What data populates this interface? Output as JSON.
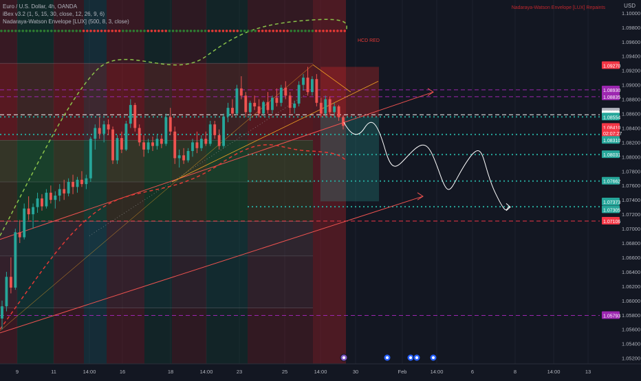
{
  "header": {
    "symbol": "Euro / U.S. Dollar, 4h, OANDA",
    "indicator1": "iBex v3.2 (1, 5, 15, 30, close, 12, 26, 9, 6)",
    "indicator2": "Nadaraya-Watson Envelope [LUX] (500, 8, 3, close)",
    "corner_label": "Nadaraya-Watson Envelope [LUX] Repaints",
    "currency": "USD"
  },
  "annotation": "HCD RED",
  "colors": {
    "background": "#131722",
    "up": "#26a69a",
    "down": "#ef5350",
    "grid": "#1e222d",
    "envelope_up": "#4caf50",
    "envelope_dn": "#e53935",
    "level_purple": "#9c27b0",
    "level_teal": "#26a69a",
    "level_red": "#f23645"
  },
  "chart_data": {
    "type": "candlestick",
    "x_ticks": [
      "9",
      "11",
      "14:00",
      "16",
      "18",
      "14:00",
      "23",
      "25",
      "14:00",
      "30",
      "Feb",
      "14:00",
      "6",
      "8",
      "14:00",
      "13"
    ],
    "y_ticks": [
      "1.10000",
      "1.09800",
      "1.09600",
      "1.09400",
      "1.09200",
      "1.09000",
      "1.08800",
      "1.08600",
      "1.08400",
      "1.08200",
      "1.08000",
      "1.07800",
      "1.07600",
      "1.07400",
      "1.07200",
      "1.07000",
      "1.06800",
      "1.06600",
      "1.06400",
      "1.06200",
      "1.06000",
      "1.05800",
      "1.05600",
      "1.05400",
      "1.05200"
    ],
    "ylim": [
      1.0512,
      1.1018
    ],
    "price_labels": [
      {
        "text": "1.09270",
        "price": 1.0927,
        "color": "#f23645",
        "text_color": "#ffffff"
      },
      {
        "text": "1.08930",
        "price": 1.0893,
        "color": "#9c27b0",
        "text_color": "#ffffff"
      },
      {
        "text": "1.08835",
        "price": 1.08835,
        "color": "#9c27b0",
        "text_color": "#ffffff"
      },
      {
        "text": "1.08623",
        "price": 1.08623,
        "color": "#b2b5be",
        "text_color": "#131722"
      },
      {
        "text": "1.08584",
        "price": 1.08584,
        "color": "#ffffff",
        "text_color": "#131722"
      },
      {
        "text": "1.08554",
        "price": 1.08554,
        "color": "#26a69a",
        "text_color": "#ffffff"
      },
      {
        "text": "1.08410",
        "price": 1.0841,
        "color": "#f23645",
        "text_color": "#ffffff"
      },
      {
        "text": "02:07:27",
        "price": 1.0833,
        "color": "#f23645",
        "text_color": "#ffffff"
      },
      {
        "text": "1.08310",
        "price": 1.0823,
        "color": "#26a69a",
        "text_color": "#ffffff"
      },
      {
        "text": "1.08031",
        "price": 1.08031,
        "color": "#26a69a",
        "text_color": "#ffffff"
      },
      {
        "text": "1.07662",
        "price": 1.07662,
        "color": "#26a69a",
        "text_color": "#ffffff"
      },
      {
        "text": "1.07373",
        "price": 1.07373,
        "color": "#26a69a",
        "text_color": "#ffffff"
      },
      {
        "text": "1.07305",
        "price": 1.07265,
        "color": "#26a69a",
        "text_color": "#ffffff"
      },
      {
        "text": "1.07106",
        "price": 1.07106,
        "color": "#f23645",
        "text_color": "#ffffff"
      },
      {
        "text": "1.05793",
        "price": 1.05793,
        "color": "#9c27b0",
        "text_color": "#ffffff"
      }
    ],
    "levels": [
      {
        "price": 1.0893,
        "color": "#9c27b0",
        "style": "dashed"
      },
      {
        "price": 1.08835,
        "color": "#9c27b0",
        "style": "dashed"
      },
      {
        "price": 1.08584,
        "color": "#ffffff",
        "style": "dashed"
      },
      {
        "price": 1.08554,
        "color": "#26a69a",
        "style": "dotted"
      },
      {
        "price": 1.0831,
        "color": "#26a69a",
        "style": "dotted"
      },
      {
        "price": 1.08031,
        "color": "#26a69a",
        "style": "dotted"
      },
      {
        "price": 1.07662,
        "color": "#26a69a",
        "style": "dotted"
      },
      {
        "price": 1.07305,
        "color": "#26a69a",
        "style": "dotted"
      },
      {
        "price": 1.07106,
        "color": "#f23645",
        "style": "dashed"
      },
      {
        "price": 1.05793,
        "color": "#9c27b0",
        "style": "dashed"
      }
    ],
    "candles": [
      [
        1.0575,
        1.06,
        1.056,
        1.0592
      ],
      [
        1.0592,
        1.064,
        1.0585,
        1.0633
      ],
      [
        1.0633,
        1.066,
        1.061,
        1.0618
      ],
      [
        1.0618,
        1.07,
        1.0615,
        1.0695
      ],
      [
        1.0695,
        1.0712,
        1.068,
        1.0688
      ],
      [
        1.0688,
        1.0735,
        1.0685,
        1.0728
      ],
      [
        1.0728,
        1.0745,
        1.0712,
        1.072
      ],
      [
        1.072,
        1.0735,
        1.07,
        1.073
      ],
      [
        1.073,
        1.075,
        1.0722,
        1.0742
      ],
      [
        1.0742,
        1.0748,
        1.0725,
        1.0731
      ],
      [
        1.0731,
        1.0755,
        1.0728,
        1.075
      ],
      [
        1.075,
        1.076,
        1.0735,
        1.074
      ],
      [
        1.074,
        1.0752,
        1.0728,
        1.0746
      ],
      [
        1.0746,
        1.0762,
        1.0738,
        1.0755
      ],
      [
        1.0755,
        1.0768,
        1.074,
        1.0749
      ],
      [
        1.0749,
        1.077,
        1.0745,
        1.0765
      ],
      [
        1.0765,
        1.0775,
        1.0748,
        1.0758
      ],
      [
        1.0758,
        1.0772,
        1.075,
        1.0768
      ],
      [
        1.0768,
        1.078,
        1.0758,
        1.0762
      ],
      [
        1.0762,
        1.0775,
        1.0755,
        1.077
      ],
      [
        1.077,
        1.0828,
        1.0765,
        1.0825
      ],
      [
        1.0825,
        1.0845,
        1.081,
        1.084
      ],
      [
        1.084,
        1.0855,
        1.0825,
        1.0832
      ],
      [
        1.0832,
        1.085,
        1.082,
        1.0845
      ],
      [
        1.0845,
        1.0852,
        1.083,
        1.0838
      ],
      [
        1.0838,
        1.0842,
        1.079,
        1.0795
      ],
      [
        1.0795,
        1.083,
        1.079,
        1.0826
      ],
      [
        1.0826,
        1.0835,
        1.0805,
        1.081
      ],
      [
        1.081,
        1.085,
        1.0808,
        1.0846
      ],
      [
        1.0846,
        1.088,
        1.084,
        1.0872
      ],
      [
        1.0872,
        1.0875,
        1.0835,
        1.084
      ],
      [
        1.084,
        1.0845,
        1.0815,
        1.082
      ],
      [
        1.082,
        1.083,
        1.08,
        1.081
      ],
      [
        1.081,
        1.0825,
        1.0805,
        1.082
      ],
      [
        1.082,
        1.0828,
        1.0808,
        1.0815
      ],
      [
        1.0815,
        1.083,
        1.081,
        1.0825
      ],
      [
        1.0825,
        1.083,
        1.0812,
        1.0818
      ],
      [
        1.0818,
        1.086,
        1.0815,
        1.0855
      ],
      [
        1.0855,
        1.0868,
        1.083,
        1.0835
      ],
      [
        1.0835,
        1.0842,
        1.079,
        1.0798
      ],
      [
        1.0798,
        1.081,
        1.0785,
        1.0802
      ],
      [
        1.0802,
        1.0812,
        1.079,
        1.0795
      ],
      [
        1.0795,
        1.0812,
        1.0792,
        1.0808
      ],
      [
        1.0808,
        1.0825,
        1.08,
        1.082
      ],
      [
        1.082,
        1.0835,
        1.0805,
        1.0812
      ],
      [
        1.0812,
        1.083,
        1.0808,
        1.0825
      ],
      [
        1.0825,
        1.0835,
        1.0815,
        1.0818
      ],
      [
        1.0818,
        1.085,
        1.0815,
        1.0845
      ],
      [
        1.0845,
        1.085,
        1.0825,
        1.083
      ],
      [
        1.083,
        1.0838,
        1.081,
        1.0815
      ],
      [
        1.0815,
        1.086,
        1.0812,
        1.0856
      ],
      [
        1.0856,
        1.0875,
        1.0848,
        1.0868
      ],
      [
        1.0868,
        1.088,
        1.0855,
        1.086
      ],
      [
        1.086,
        1.09,
        1.0858,
        1.0895
      ],
      [
        1.0895,
        1.0912,
        1.088,
        1.0885
      ],
      [
        1.0885,
        1.089,
        1.0855,
        1.0862
      ],
      [
        1.0862,
        1.0878,
        1.085,
        1.0875
      ],
      [
        1.0875,
        1.0885,
        1.0865,
        1.087
      ],
      [
        1.087,
        1.088,
        1.0855,
        1.086
      ],
      [
        1.086,
        1.0878,
        1.0856,
        1.0876
      ],
      [
        1.0876,
        1.089,
        1.086,
        1.0865
      ],
      [
        1.0865,
        1.0885,
        1.086,
        1.0882
      ],
      [
        1.0882,
        1.0895,
        1.087,
        1.0875
      ],
      [
        1.0875,
        1.09,
        1.087,
        1.0896
      ],
      [
        1.0896,
        1.0905,
        1.088,
        1.0885
      ],
      [
        1.0885,
        1.089,
        1.086,
        1.0868
      ],
      [
        1.0868,
        1.0878,
        1.086,
        1.0874
      ],
      [
        1.0874,
        1.0905,
        1.087,
        1.09
      ],
      [
        1.09,
        1.0915,
        1.0892,
        1.091
      ],
      [
        1.091,
        1.0925,
        1.0885,
        1.089
      ],
      [
        1.089,
        1.0912,
        1.0885,
        1.0908
      ],
      [
        1.0908,
        1.0915,
        1.087,
        1.0875
      ],
      [
        1.0875,
        1.0882,
        1.0855,
        1.086
      ],
      [
        1.086,
        1.0885,
        1.0855,
        1.088
      ],
      [
        1.088,
        1.0884,
        1.0858,
        1.0862
      ],
      [
        1.0862,
        1.0875,
        1.0855,
        1.087
      ],
      [
        1.087,
        1.0872,
        1.085,
        1.0855
      ],
      [
        1.0855,
        1.0858,
        1.0838,
        1.0843
      ]
    ]
  },
  "bottom_icons": [
    "lightning-icon",
    "flag-icon",
    "flag-icon",
    "flag-icon",
    "flag-icon"
  ]
}
